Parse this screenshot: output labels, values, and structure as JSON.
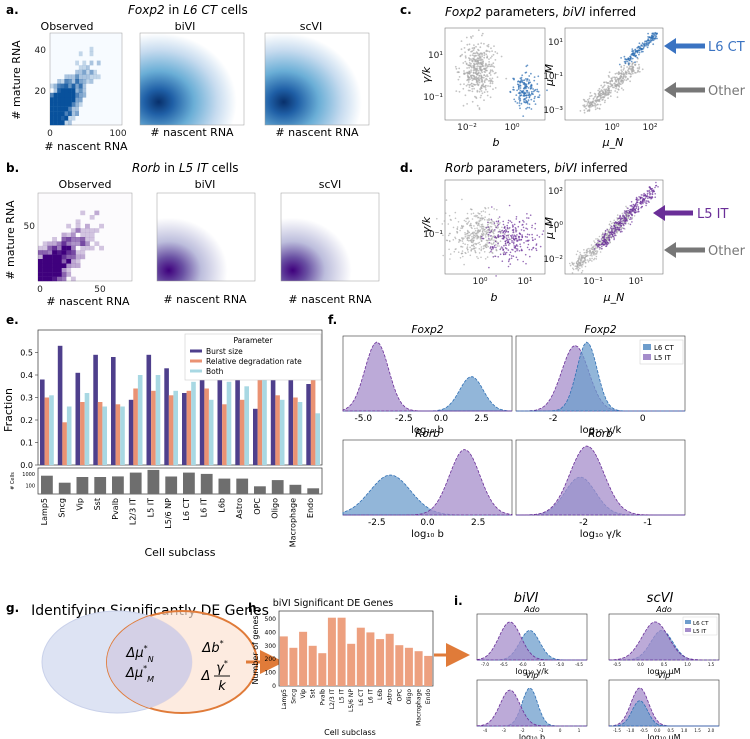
{
  "panels": {
    "a": {
      "label": "a.",
      "title_parts": [
        "Foxp2",
        " in ",
        "L6 CT",
        " cells"
      ],
      "subtitles": [
        "Observed",
        "biVI",
        "scVI"
      ],
      "xlabel": "# nascent RNA",
      "ylabel": "# mature RNA",
      "xticks": [
        "0",
        "100"
      ],
      "yticks": [
        "40",
        "20"
      ]
    },
    "b": {
      "label": "b.",
      "title_parts": [
        "Rorb",
        " in ",
        "L5 IT",
        " cells"
      ],
      "subtitles": [
        "Observed",
        "biVI",
        "scVI"
      ],
      "xlabel": "# nascent RNA",
      "ylabel": "# mature RNA",
      "xticks": [
        "0",
        "50"
      ],
      "yticks": [
        "50"
      ]
    },
    "c": {
      "label": "c.",
      "title_parts": [
        "Foxp2",
        " parameters, ",
        "biVI",
        " inferred"
      ],
      "left": {
        "xlabel": "b",
        "ylabel": "γ/k",
        "xticks": [
          "10⁻²",
          "10⁰"
        ],
        "yticks": [
          "10¹",
          "10⁻¹"
        ]
      },
      "right": {
        "xlabel": "μ_N",
        "ylabel": "μ_M",
        "xticks": [
          "10⁰",
          "10²"
        ],
        "yticks": [
          "10¹",
          "10⁻¹",
          "10⁻³"
        ]
      },
      "arrow_labels": [
        "L6 CT",
        "Other"
      ]
    },
    "d": {
      "label": "d.",
      "title_parts": [
        "Rorb",
        " parameters, ",
        "biVI",
        " inferred"
      ],
      "left": {
        "xlabel": "b",
        "ylabel": "γ/k",
        "xticks": [
          "10⁰",
          "10¹"
        ],
        "yticks": [
          "10⁻¹"
        ]
      },
      "right": {
        "xlabel": "μ_N",
        "ylabel": "μ_M",
        "xticks": [
          "10⁻¹",
          "10¹"
        ],
        "yticks": [
          "10²",
          "10⁰",
          "10⁻²"
        ]
      },
      "arrow_labels": [
        "L5 IT",
        "Other"
      ]
    },
    "e": {
      "label": "e.",
      "ylabel": "Fraction",
      "xlabel": "Cell subclass",
      "cells_label": "# Cells",
      "legend_title": "Parameter",
      "legend": [
        "Burst size",
        "Relative degradation rate",
        "Both"
      ]
    },
    "f": {
      "label": "f.",
      "titles": [
        "Foxp2",
        "Foxp2",
        "Rorb",
        "Rorb"
      ],
      "xlabels": [
        "log₁₀ b",
        "log₁₀ γ/k",
        "log₁₀ b",
        "log₁₀ γ/k"
      ],
      "legend": [
        "L6 CT",
        "L5 IT"
      ]
    },
    "g": {
      "label": "g.",
      "title": "Identifying Significantly DE Genes",
      "left_lines": [
        "Δμ*N",
        "Δμ*M"
      ],
      "right_lines": [
        "Δb*",
        "Δγ*/k"
      ]
    },
    "h": {
      "label": "h.",
      "ylabel": "Number of genes",
      "xlabel": "Cell subclass"
    },
    "i": {
      "label": "i.",
      "headers": [
        "biVI",
        "scVI"
      ],
      "row_titles": [
        "Ado",
        "Ado",
        "Vip",
        "Vip"
      ],
      "xlabels": [
        "log₁₀ γ/k",
        "log₁₀ μM",
        "log₁₀ b",
        "log₁₀ μM"
      ],
      "legend": [
        "L6 CT",
        "L5 IT"
      ]
    }
  },
  "colors": {
    "blue": "#2f6fb4",
    "purple": "#6a2e98",
    "grey": "#a6a6a6",
    "burst": "#4e3f8c",
    "degradation": "#ea9273",
    "both": "#a8d8e3",
    "h_bar": "#eda07f",
    "f_blue": "#6e9dcc",
    "f_purple": "#a58dcb"
  },
  "chart_data": [
    {
      "id": "e",
      "type": "bar",
      "title": "",
      "xlabel": "Cell subclass",
      "ylabel": "Fraction",
      "ylim": [
        0,
        0.6
      ],
      "yticks": [
        0.0,
        0.1,
        0.2,
        0.3,
        0.4,
        0.5
      ],
      "categories": [
        "Lamp5",
        "Sncg",
        "Vip",
        "Sst",
        "Pvalb",
        "L2/3 IT",
        "L5 IT",
        "L5/6 NP",
        "L6 CT",
        "L6 IT",
        "L6b",
        "Astro",
        "OPC",
        "Oligo",
        "Macrophage",
        "Endo"
      ],
      "series": [
        {
          "name": "Burst size",
          "values": [
            0.38,
            0.53,
            0.41,
            0.49,
            0.48,
            0.29,
            0.49,
            0.43,
            0.32,
            0.41,
            0.42,
            0.41,
            0.25,
            0.41,
            0.4,
            0.36
          ]
        },
        {
          "name": "Relative degradation rate",
          "values": [
            0.3,
            0.19,
            0.28,
            0.28,
            0.27,
            0.34,
            0.33,
            0.31,
            0.33,
            0.34,
            0.27,
            0.29,
            0.46,
            0.31,
            0.3,
            0.48
          ]
        },
        {
          "name": "Both",
          "values": [
            0.31,
            0.26,
            0.32,
            0.26,
            0.26,
            0.4,
            0.4,
            0.33,
            0.37,
            0.29,
            0.37,
            0.35,
            0.41,
            0.29,
            0.28,
            0.23
          ]
        }
      ]
    },
    {
      "id": "e-cells",
      "type": "bar",
      "ylabel": "# Cells",
      "yticks": [
        100,
        1000
      ],
      "categories": [
        "Lamp5",
        "Sncg",
        "Vip",
        "Sst",
        "Pvalb",
        "L2/3 IT",
        "L5 IT",
        "L5/6 NP",
        "L6 CT",
        "L6 IT",
        "L6b",
        "Astro",
        "OPC",
        "Oligo",
        "Macrophage",
        "Endo"
      ],
      "values": [
        700,
        180,
        550,
        550,
        620,
        1300,
        2200,
        600,
        1300,
        1000,
        400,
        400,
        90,
        300,
        120,
        60
      ]
    },
    {
      "id": "h",
      "type": "bar",
      "title": "biVI Significant DE Genes",
      "xlabel": "Cell subclass",
      "ylabel": "Number of genes",
      "ylim": [
        0,
        560
      ],
      "yticks": [
        0,
        100,
        200,
        300,
        400,
        500
      ],
      "categories": [
        "Lamp5",
        "Sncg",
        "Vip",
        "Sst",
        "Pvalb",
        "L2/3 IT",
        "L5 IT",
        "L5/6 NP",
        "L6 CT",
        "L6 IT",
        "L6b",
        "Astro",
        "OPC",
        "Oligo",
        "Macrophage",
        "Endo"
      ],
      "values": [
        370,
        285,
        405,
        300,
        245,
        510,
        510,
        315,
        435,
        400,
        350,
        390,
        305,
        285,
        260,
        225
      ]
    },
    {
      "id": "f",
      "type": "area",
      "subplots": [
        {
          "title": "Foxp2",
          "xlabel": "log₁₀ b",
          "xticks": [
            -5.0,
            -2.5,
            0.0,
            2.5
          ]
        },
        {
          "title": "Foxp2",
          "xlabel": "log₁₀ γ/k",
          "xticks": [
            -2,
            0
          ]
        },
        {
          "title": "Rorb",
          "xlabel": "log₁₀ b",
          "xticks": [
            -2.5,
            0.0,
            2.5
          ]
        },
        {
          "title": "Rorb",
          "xlabel": "log₁₀ γ/k",
          "xticks": [
            -2,
            -1
          ]
        }
      ],
      "legend": [
        "L6 CT",
        "L5 IT"
      ]
    },
    {
      "id": "i",
      "type": "area",
      "subplots": [
        {
          "title": "Ado",
          "xlabel": "log₁₀ γ/k",
          "xticks": [
            "-7.0",
            "-6.5",
            "-6.0",
            "-5.5",
            "-5.0",
            "-4.5"
          ]
        },
        {
          "title": "Ado",
          "xlabel": "log₁₀ μM",
          "xticks": [
            "-0.5",
            "0.0",
            "0.5",
            "1.0",
            "1.5"
          ]
        },
        {
          "title": "Vip",
          "xlabel": "log₁₀ b",
          "xticks": [
            "-4",
            "-3",
            "-2",
            "-1",
            "0",
            "1"
          ]
        },
        {
          "title": "Vip",
          "xlabel": "log₁₀ μM",
          "xticks": [
            "-1.5",
            "-1.0",
            "-0.5",
            "0.0",
            "0.5",
            "1.0",
            "1.5",
            "2.0"
          ]
        }
      ],
      "legend": [
        "L6 CT",
        "L5 IT"
      ]
    }
  ]
}
